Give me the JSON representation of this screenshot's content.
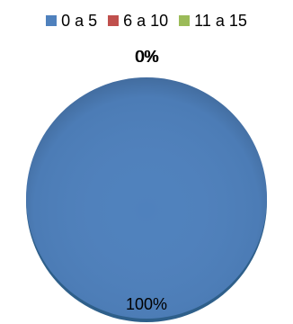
{
  "chart_data": {
    "type": "pie",
    "categories": [
      "0 a 5",
      "6 a 10",
      "11 a 15"
    ],
    "values": [
      100,
      0,
      0
    ],
    "data_labels": [
      "100%",
      "0%",
      "0%"
    ],
    "colors": [
      "#4f81bd",
      "#c0504d",
      "#9bbb59"
    ],
    "legend_position": "top"
  }
}
